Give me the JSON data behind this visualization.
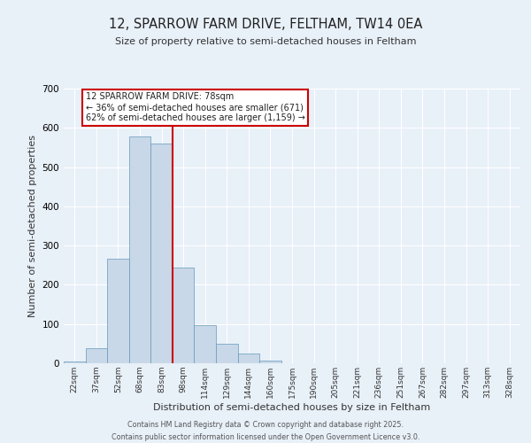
{
  "title": "12, SPARROW FARM DRIVE, FELTHAM, TW14 0EA",
  "subtitle": "Size of property relative to semi-detached houses in Feltham",
  "xlabel": "Distribution of semi-detached houses by size in Feltham",
  "ylabel": "Number of semi-detached properties",
  "bar_color": "#c8d8e8",
  "bar_edge_color": "#6699bb",
  "bg_color": "#e8f0f8",
  "grid_color": "#ffffff",
  "categories": [
    "22sqm",
    "37sqm",
    "52sqm",
    "68sqm",
    "83sqm",
    "98sqm",
    "114sqm",
    "129sqm",
    "144sqm",
    "160sqm",
    "175sqm",
    "190sqm",
    "205sqm",
    "221sqm",
    "236sqm",
    "251sqm",
    "267sqm",
    "282sqm",
    "297sqm",
    "313sqm",
    "328sqm"
  ],
  "values": [
    5,
    39,
    267,
    578,
    560,
    245,
    98,
    50,
    25,
    7,
    1,
    0,
    0,
    0,
    0,
    0,
    0,
    0,
    0,
    0,
    0
  ],
  "ylim": [
    0,
    700
  ],
  "yticks": [
    0,
    100,
    200,
    300,
    400,
    500,
    600,
    700
  ],
  "red_line_x": 4.5,
  "annotation_title": "12 SPARROW FARM DRIVE: 78sqm",
  "annotation_line1": "← 36% of semi-detached houses are smaller (671)",
  "annotation_line2": "62% of semi-detached houses are larger (1,159) →",
  "annotation_box_color": "#ffffff",
  "annotation_box_edge_color": "#cc0000",
  "red_line_color": "#cc0000",
  "footer1": "Contains HM Land Registry data © Crown copyright and database right 2025.",
  "footer2": "Contains public sector information licensed under the Open Government Licence v3.0."
}
